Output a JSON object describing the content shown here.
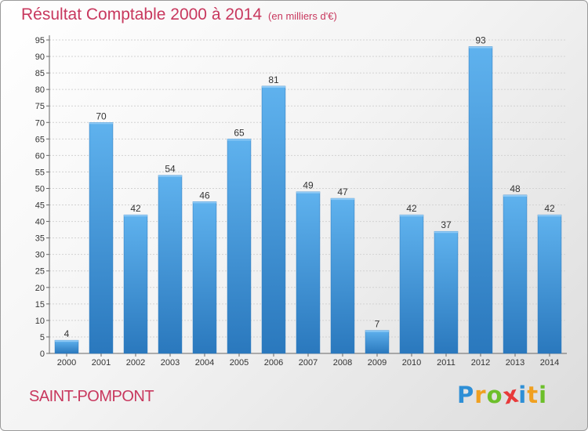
{
  "chart_data": {
    "type": "bar",
    "title": "Résultat Comptable 2000 à 2014",
    "unit_note": "(en milliers d'€)",
    "categories": [
      "2000",
      "2001",
      "2002",
      "2003",
      "2004",
      "2005",
      "2006",
      "2007",
      "2008",
      "2009",
      "2010",
      "2011",
      "2012",
      "2013",
      "2014"
    ],
    "values": [
      4,
      70,
      42,
      54,
      46,
      65,
      81,
      49,
      47,
      7,
      42,
      37,
      93,
      48,
      42
    ],
    "ylim": [
      0,
      95
    ],
    "y_ticks": [
      0,
      5,
      10,
      15,
      20,
      25,
      30,
      35,
      40,
      45,
      50,
      55,
      60,
      65,
      70,
      75,
      80,
      85,
      90,
      95
    ],
    "grid": true,
    "bar_color": "#4a9fde"
  },
  "location": "SAINT-POMPONT",
  "logo": {
    "letters": [
      "P",
      "r",
      "o",
      "x",
      "i",
      "t",
      "i"
    ],
    "colors": [
      "#2e8fd6",
      "#f0a020",
      "#6cbf2a",
      "#e83a3a",
      "#2e8fd6",
      "#f0a020",
      "#6cbf2a"
    ]
  }
}
